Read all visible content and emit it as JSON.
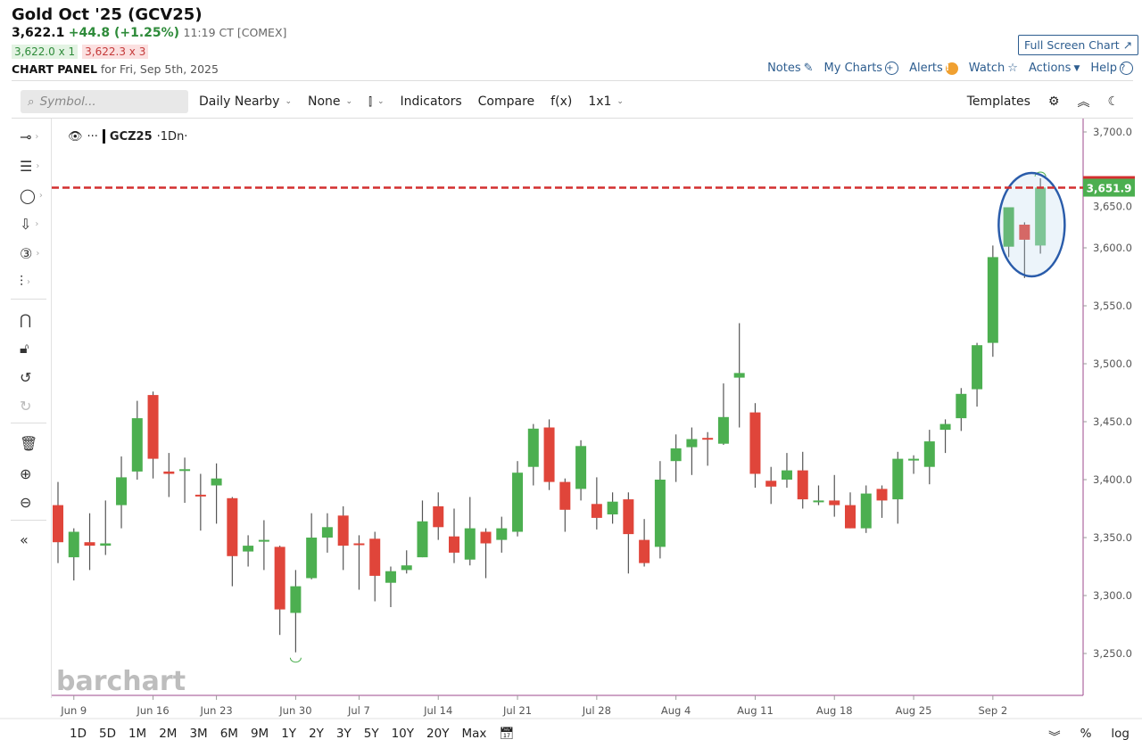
{
  "header": {
    "title": "Gold Oct '25 (GCV25)",
    "last": "3,622.1",
    "change": "+44.8 (+1.25%)",
    "time": "11:19 CT [COMEX]",
    "bid": "3,622.0 x 1",
    "ask": "3,622.3 x 3",
    "panel_label": "CHART PANEL",
    "panel_date": "for Fri, Sep 5th, 2025",
    "fullscreen": "Full Screen Chart ↗"
  },
  "links": [
    {
      "label": "Notes",
      "icon": "edit-icon"
    },
    {
      "label": "My Charts",
      "icon": "plus-circle-icon"
    },
    {
      "label": "Alerts",
      "icon": "alert-icon"
    },
    {
      "label": "Watch",
      "icon": "star-icon"
    },
    {
      "label": "Actions",
      "icon": "caret-down-icon"
    },
    {
      "label": "Help",
      "icon": "help-icon"
    }
  ],
  "toolbar": {
    "search_placeholder": "Symbol...",
    "interval": "Daily Nearby",
    "overlay": "None",
    "chart_type_icon": "candlestick-icon",
    "indicators": "Indicators",
    "compare": "Compare",
    "fx": "f(x)",
    "layout": "1x1",
    "templates": "Templates"
  },
  "legend": {
    "symbol": "GCZ25",
    "interval": "·1Dn·"
  },
  "watermark": "barchart",
  "ranges": [
    "1D",
    "5D",
    "1M",
    "2M",
    "3M",
    "6M",
    "9M",
    "1Y",
    "2Y",
    "3Y",
    "5Y",
    "10Y",
    "20Y",
    "Max"
  ],
  "axis_options": {
    "percent": "%",
    "log": "log"
  },
  "colors": {
    "up": "#4caf50",
    "down": "#e0453a",
    "price_line": "#d32f2f",
    "price_label_bg": "#4caf50",
    "annotation": "#2a5caa",
    "accent": "#2d5d8f"
  },
  "chart_data": {
    "type": "candlestick",
    "symbol": "GCZ25",
    "ylim": [
      3210,
      3710
    ],
    "yticks": [
      3250,
      3300,
      3350,
      3400,
      3450,
      3500,
      3550,
      3600,
      3650,
      3700
    ],
    "ytick_labels": [
      "3,250.0",
      "3,300.0",
      "3,350.0",
      "3,400.0",
      "3,450.0",
      "3,500.0",
      "3,550.0",
      "3,600.0",
      "3,650.0",
      "3,700.0"
    ],
    "xtick_labels": [
      "Jun 9",
      "Jun 16",
      "Jun 23",
      "Jun 30",
      "Jul 7",
      "Jul 14",
      "Jul 21",
      "Jul 28",
      "Aug 4",
      "Aug 11",
      "Aug 18",
      "Aug 25",
      "Sep 2"
    ],
    "current_price": 3651.9,
    "current_price_label": "3,651.9",
    "grid": false,
    "columns": [
      "date",
      "open",
      "high",
      "low",
      "close"
    ],
    "candles": [
      [
        "Jun 6",
        3378,
        3398,
        3328,
        3346
      ],
      [
        "Jun 9",
        3333,
        3358,
        3313,
        3355
      ],
      [
        "Jun 10",
        3346,
        3371,
        3322,
        3343
      ],
      [
        "Jun 11",
        3343,
        3382,
        3335,
        3345
      ],
      [
        "Jun 12",
        3378,
        3420,
        3358,
        3402
      ],
      [
        "Jun 13",
        3407,
        3468,
        3400,
        3453
      ],
      [
        "Jun 16",
        3473,
        3476,
        3401,
        3418
      ],
      [
        "Jun 17",
        3407,
        3423,
        3385,
        3405
      ],
      [
        "Jun 18",
        3408,
        3419,
        3380,
        3409
      ],
      [
        "Jun 20",
        3387,
        3405,
        3356,
        3386
      ],
      [
        "Jun 23",
        3395,
        3414,
        3362,
        3401
      ],
      [
        "Jun 24",
        3384,
        3385,
        3308,
        3334
      ],
      [
        "Jun 25",
        3338,
        3352,
        3325,
        3343
      ],
      [
        "Jun 26",
        3347,
        3365,
        3322,
        3348
      ],
      [
        "Jun 27",
        3342,
        3343,
        3266,
        3288
      ],
      [
        "Jun 30",
        3285,
        3322,
        3251,
        3308
      ],
      [
        "Jul 1",
        3315,
        3371,
        3314,
        3350
      ],
      [
        "Jul 2",
        3350,
        3371,
        3337,
        3359
      ],
      [
        "Jul 3",
        3369,
        3377,
        3322,
        3343
      ],
      [
        "Jul 7",
        3345,
        3352,
        3305,
        3344
      ],
      [
        "Jul 8",
        3349,
        3355,
        3295,
        3317
      ],
      [
        "Jul 9",
        3311,
        3325,
        3290,
        3321
      ],
      [
        "Jul 10",
        3322,
        3339,
        3319,
        3326
      ],
      [
        "Jul 11",
        3333,
        3382,
        3333,
        3364
      ],
      [
        "Jul 14",
        3377,
        3389,
        3348,
        3359
      ],
      [
        "Jul 15",
        3351,
        3375,
        3328,
        3337
      ],
      [
        "Jul 16",
        3331,
        3385,
        3326,
        3358
      ],
      [
        "Jul 17",
        3355,
        3358,
        3315,
        3345
      ],
      [
        "Jul 18",
        3348,
        3368,
        3337,
        3358
      ],
      [
        "Jul 21",
        3355,
        3416,
        3351,
        3406
      ],
      [
        "Jul 22",
        3411,
        3448,
        3395,
        3444
      ],
      [
        "Jul 23",
        3445,
        3452,
        3391,
        3398
      ],
      [
        "Jul 24",
        3398,
        3401,
        3355,
        3374
      ],
      [
        "Jul 25",
        3392,
        3434,
        3382,
        3429
      ],
      [
        "Jul 28",
        3379,
        3402,
        3357,
        3367
      ],
      [
        "Jul 29",
        3370,
        3389,
        3362,
        3381
      ],
      [
        "Jul 30",
        3383,
        3389,
        3319,
        3353
      ],
      [
        "Jul 31",
        3348,
        3366,
        3325,
        3328
      ],
      [
        "Aug 1",
        3342,
        3416,
        3332,
        3400
      ],
      [
        "Aug 4",
        3416,
        3439,
        3398,
        3427
      ],
      [
        "Aug 5",
        3428,
        3445,
        3404,
        3435
      ],
      [
        "Aug 6",
        3436,
        3441,
        3412,
        3435
      ],
      [
        "Aug 7",
        3431,
        3483,
        3430,
        3454
      ],
      [
        "Aug 8",
        3488,
        3535,
        3445,
        3492
      ],
      [
        "Aug 11",
        3458,
        3466,
        3393,
        3405
      ],
      [
        "Aug 12",
        3399,
        3411,
        3379,
        3394
      ],
      [
        "Aug 13",
        3400,
        3423,
        3393,
        3408
      ],
      [
        "Aug 14",
        3408,
        3424,
        3375,
        3383
      ],
      [
        "Aug 15",
        3382,
        3395,
        3378,
        3382
      ],
      [
        "Aug 18",
        3382,
        3404,
        3368,
        3378
      ],
      [
        "Aug 19",
        3378,
        3389,
        3358,
        3358
      ],
      [
        "Aug 20",
        3358,
        3395,
        3354,
        3388
      ],
      [
        "Aug 21",
        3392,
        3395,
        3367,
        3382
      ],
      [
        "Aug 22",
        3383,
        3424,
        3362,
        3418
      ],
      [
        "Aug 25",
        3417,
        3421,
        3405,
        3418
      ],
      [
        "Aug 26",
        3411,
        3443,
        3396,
        3433
      ],
      [
        "Aug 27",
        3443,
        3452,
        3423,
        3448
      ],
      [
        "Aug 28",
        3453,
        3479,
        3442,
        3474
      ],
      [
        "Aug 29",
        3478,
        3518,
        3463,
        3516
      ],
      [
        "Sep 2",
        3518,
        3602,
        3506,
        3592
      ],
      [
        "Sep 3",
        3601,
        3635,
        3592,
        3635
      ],
      [
        "Sep 4",
        3620,
        3622,
        3574,
        3607
      ],
      [
        "Sep 5",
        3602,
        3660,
        3595,
        3652
      ]
    ]
  }
}
